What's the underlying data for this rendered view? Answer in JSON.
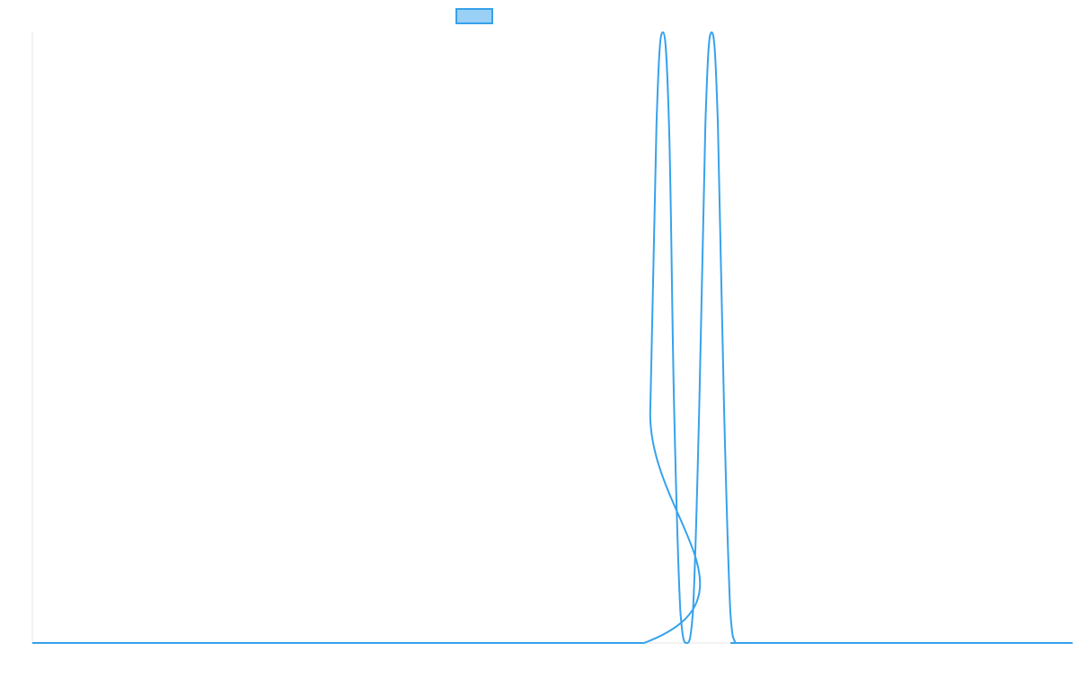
{
  "chart_data": {
    "type": "line",
    "title": "",
    "xlabel": "",
    "ylabel": "",
    "grid": false,
    "legend": {
      "placement": "top-center",
      "entries": [
        {
          "label": "",
          "color": "#36a2eb",
          "fill": "#9ad0f5"
        }
      ]
    },
    "x_range": [
      0,
      1
    ],
    "y_range": [
      0,
      1
    ],
    "series": [
      {
        "color": "#36a2eb",
        "x": [
          0,
          0.588,
          0.594,
          0.6,
          0.606,
          0.612,
          0.617,
          0.623,
          0.629,
          0.635,
          0.641,
          0.647,
          0.653,
          0.659,
          0.665,
          0.671,
          0.676,
          0.682,
          0.688,
          0.694,
          0.7,
          1
        ],
        "y": [
          0,
          0,
          0.38,
          0.85,
          1.0,
          0.85,
          0.38,
          0.05,
          0.0,
          0.05,
          0.38,
          0.85,
          1.0,
          0.85,
          0.38,
          0.05,
          0.0,
          0,
          0,
          0,
          0,
          0
        ]
      }
    ]
  }
}
